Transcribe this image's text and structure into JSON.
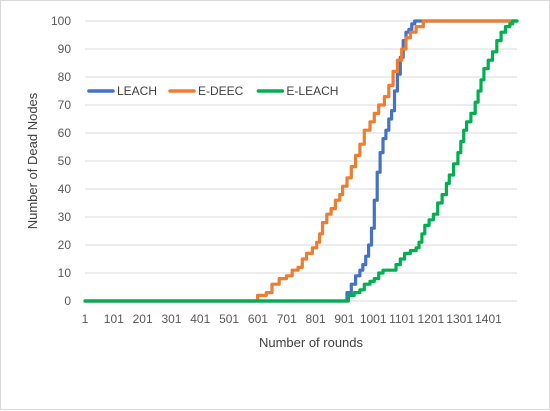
{
  "chart_data": {
    "type": "line",
    "title": "",
    "xlabel": "Number of rounds",
    "ylabel": "Number of Dead Nodes",
    "xlim": [
      1,
      1500
    ],
    "ylim": [
      0,
      100
    ],
    "x_tick_labels": [
      "1",
      "101",
      "201",
      "301",
      "401",
      "501",
      "601",
      "701",
      "801",
      "901",
      "1001",
      "1101",
      "1201",
      "1301",
      "1401"
    ],
    "y_tick_labels": [
      "0",
      "10",
      "20",
      "30",
      "40",
      "50",
      "60",
      "70",
      "80",
      "90",
      "100"
    ],
    "grid": true,
    "legend_position": "left-middle",
    "series": [
      {
        "name": "LEACH",
        "color": "#4472C4",
        "points": [
          [
            1,
            0
          ],
          [
            903,
            0
          ],
          [
            910,
            3
          ],
          [
            925,
            6
          ],
          [
            940,
            9
          ],
          [
            955,
            11
          ],
          [
            965,
            13
          ],
          [
            975,
            16
          ],
          [
            985,
            20
          ],
          [
            995,
            26
          ],
          [
            1005,
            36
          ],
          [
            1015,
            46
          ],
          [
            1025,
            53
          ],
          [
            1035,
            58
          ],
          [
            1045,
            61
          ],
          [
            1055,
            65
          ],
          [
            1065,
            68
          ],
          [
            1075,
            75
          ],
          [
            1085,
            81
          ],
          [
            1095,
            87
          ],
          [
            1105,
            93
          ],
          [
            1115,
            96
          ],
          [
            1125,
            97
          ],
          [
            1135,
            99
          ],
          [
            1145,
            100
          ],
          [
            1500,
            100
          ]
        ]
      },
      {
        "name": "E-DEEC",
        "color": "#ED7D31",
        "points": [
          [
            1,
            0
          ],
          [
            590,
            0
          ],
          [
            600,
            2
          ],
          [
            630,
            3
          ],
          [
            650,
            6
          ],
          [
            675,
            8
          ],
          [
            700,
            9
          ],
          [
            720,
            11
          ],
          [
            740,
            12
          ],
          [
            755,
            15
          ],
          [
            770,
            17
          ],
          [
            790,
            19
          ],
          [
            805,
            21
          ],
          [
            815,
            24
          ],
          [
            825,
            28
          ],
          [
            840,
            31
          ],
          [
            855,
            33
          ],
          [
            870,
            36
          ],
          [
            885,
            38
          ],
          [
            895,
            41
          ],
          [
            910,
            44
          ],
          [
            925,
            48
          ],
          [
            940,
            52
          ],
          [
            955,
            56
          ],
          [
            970,
            61
          ],
          [
            990,
            64
          ],
          [
            1005,
            67
          ],
          [
            1020,
            70
          ],
          [
            1040,
            73
          ],
          [
            1055,
            77
          ],
          [
            1070,
            82
          ],
          [
            1085,
            86
          ],
          [
            1100,
            90
          ],
          [
            1115,
            94
          ],
          [
            1130,
            96
          ],
          [
            1150,
            98
          ],
          [
            1175,
            100
          ],
          [
            1500,
            100
          ]
        ]
      },
      {
        "name": "E-LEACH",
        "color": "#00B050",
        "points": [
          [
            1,
            0
          ],
          [
            905,
            0
          ],
          [
            915,
            2
          ],
          [
            935,
            3
          ],
          [
            955,
            4
          ],
          [
            970,
            6
          ],
          [
            990,
            7
          ],
          [
            1005,
            8
          ],
          [
            1020,
            10
          ],
          [
            1035,
            11
          ],
          [
            1060,
            11
          ],
          [
            1080,
            13
          ],
          [
            1095,
            15
          ],
          [
            1110,
            17
          ],
          [
            1130,
            18
          ],
          [
            1150,
            19
          ],
          [
            1160,
            21
          ],
          [
            1170,
            24
          ],
          [
            1180,
            27
          ],
          [
            1195,
            29
          ],
          [
            1210,
            31
          ],
          [
            1225,
            35
          ],
          [
            1240,
            38
          ],
          [
            1255,
            42
          ],
          [
            1265,
            45
          ],
          [
            1280,
            49
          ],
          [
            1295,
            53
          ],
          [
            1305,
            57
          ],
          [
            1315,
            61
          ],
          [
            1325,
            64
          ],
          [
            1340,
            67
          ],
          [
            1355,
            71
          ],
          [
            1365,
            75
          ],
          [
            1375,
            79
          ],
          [
            1385,
            83
          ],
          [
            1400,
            86
          ],
          [
            1415,
            89
          ],
          [
            1430,
            93
          ],
          [
            1445,
            96
          ],
          [
            1460,
            98
          ],
          [
            1475,
            99
          ],
          [
            1485,
            100
          ],
          [
            1500,
            100
          ]
        ]
      }
    ]
  }
}
